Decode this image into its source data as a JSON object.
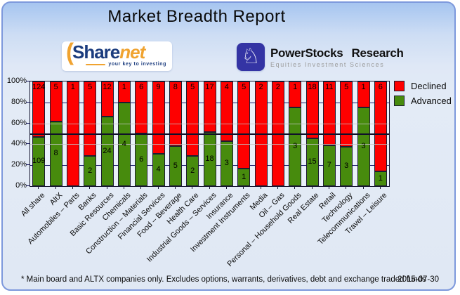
{
  "header": {
    "title": "Market Breadth Report"
  },
  "logos": {
    "sharenet": {
      "paren": "(",
      "part1": "Share",
      "part2": "net",
      "tagline": "your key to investing"
    },
    "powerstocks": {
      "name1": "PowerStocks",
      "name2": "Research",
      "tagline": "Equities Investment Sciences",
      "icon": "chess-knight-icon",
      "knight_glyph": "♘",
      "badge_color": "#3434a4"
    }
  },
  "chart_data": {
    "type": "bar",
    "stacked": true,
    "stacking": "percent",
    "title": "Market Breadth Report",
    "categories": [
      "All share",
      "AltX",
      "Automobiles – Parts",
      "Banks",
      "Basic Resources",
      "Chemicals",
      "Construction – Materials",
      "Financial Services",
      "Food – Beverage",
      "Health Care",
      "Industrial Goods – Services",
      "Insurance",
      "Investment Instruments",
      "Media",
      "Oil – Gas",
      "Personal – Household Goods",
      "Real Estate",
      "Retail",
      "Technology",
      "Telecommunications",
      "Travel – Leisure"
    ],
    "series": [
      {
        "name": "Declined",
        "color": "#fe0000",
        "values": [
          124,
          5,
          1,
          5,
          12,
          1,
          6,
          9,
          8,
          5,
          17,
          4,
          5,
          2,
          2,
          1,
          18,
          11,
          5,
          1,
          6
        ]
      },
      {
        "name": "Advanced",
        "color": "#478b0d",
        "values": [
          109,
          8,
          0,
          2,
          24,
          4,
          6,
          4,
          5,
          2,
          18,
          3,
          1,
          0,
          0,
          3,
          15,
          7,
          3,
          3,
          1
        ]
      }
    ],
    "ylabel": "",
    "xlabel": "",
    "ylim": [
      0,
      100
    ],
    "y_ticks": [
      "100%",
      "80%",
      "60%",
      "40%",
      "20%",
      "0%"
    ],
    "y_tick_values": [
      100,
      80,
      60,
      40,
      20,
      0
    ],
    "legend_position": "top-right",
    "grid": {
      "navy_tick_lines_pct": [
        20,
        80
      ],
      "gray_lines_pct": [
        40,
        60
      ],
      "dark_line_pct": 50,
      "navy_color": "#16166a",
      "gray_color": "#c3c3c3",
      "dark_color": "#10102a"
    }
  },
  "footer": {
    "note": "* Main board and ALTX companies only. Excludes options, warrants, derivatives, debt and exchange traded funds",
    "date": "2015-07-30"
  }
}
